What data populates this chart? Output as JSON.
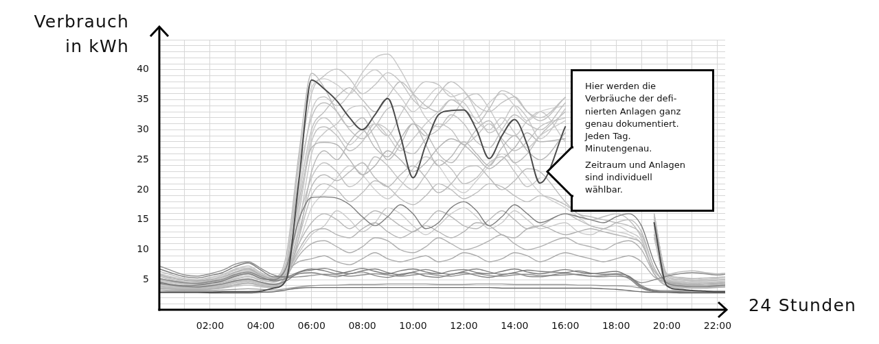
{
  "chart_data": {
    "type": "line",
    "ylabel": "Verbrauch\nin kWh",
    "xlabel": "24 Stunden",
    "annotations": [
      "Hier werden die\nVerbräuche der defi-\nnierten Anlagen ganz\ngenau dokumentiert.\nJeden Tag.\nMinutengenau.",
      "Zeitraum und Anlagen\nsind individuell\nwählbar."
    ],
    "xlim": [
      0,
      22.3
    ],
    "ylim": [
      0,
      45
    ],
    "xticks": [
      {
        "value": 1,
        "label": null
      },
      {
        "value": 2,
        "label": "02:00"
      },
      {
        "value": 3,
        "label": null
      },
      {
        "value": 4,
        "label": "04:00"
      },
      {
        "value": 5,
        "label": null
      },
      {
        "value": 6,
        "label": "06:00"
      },
      {
        "value": 7,
        "label": null
      },
      {
        "value": 8,
        "label": "08:00"
      },
      {
        "value": 9,
        "label": null
      },
      {
        "value": 10,
        "label": "10:00"
      },
      {
        "value": 11,
        "label": null
      },
      {
        "value": 12,
        "label": "12:00"
      },
      {
        "value": 13,
        "label": null
      },
      {
        "value": 14,
        "label": "14:00"
      },
      {
        "value": 15,
        "label": null
      },
      {
        "value": 16,
        "label": "16:00"
      },
      {
        "value": 17,
        "label": null
      },
      {
        "value": 18,
        "label": "18:00"
      },
      {
        "value": 19,
        "label": null
      },
      {
        "value": 20,
        "label": "20:00"
      },
      {
        "value": 21,
        "label": null
      },
      {
        "value": 22,
        "label": "22:00"
      }
    ],
    "yticks": [
      {
        "value": 1,
        "label": null
      },
      {
        "value": 2,
        "label": null
      },
      {
        "value": 3,
        "label": null
      },
      {
        "value": 4,
        "label": null
      },
      5,
      {
        "value": 6,
        "label": null
      },
      {
        "value": 7,
        "label": null
      },
      {
        "value": 8,
        "label": null
      },
      {
        "value": 9,
        "label": null
      },
      10,
      {
        "value": 11,
        "label": null
      },
      {
        "value": 12,
        "label": null
      },
      {
        "value": 13,
        "label": null
      },
      {
        "value": 14,
        "label": null
      },
      15,
      {
        "value": 16,
        "label": null
      },
      {
        "value": 17,
        "label": null
      },
      {
        "value": 18,
        "label": null
      },
      {
        "value": 19,
        "label": null
      },
      20,
      {
        "value": 21,
        "label": null
      },
      {
        "value": 22,
        "label": null
      },
      {
        "value": 23,
        "label": null
      },
      {
        "value": 24,
        "label": null
      },
      25,
      {
        "value": 26,
        "label": null
      },
      {
        "value": 27,
        "label": null
      },
      {
        "value": 28,
        "label": null
      },
      {
        "value": 29,
        "label": null
      },
      30,
      {
        "value": 31,
        "label": null
      },
      {
        "value": 32,
        "label": null
      },
      {
        "value": 33,
        "label": null
      },
      {
        "value": 34,
        "label": null
      },
      35,
      {
        "value": 36,
        "label": null
      },
      {
        "value": 37,
        "label": null
      },
      {
        "value": 38,
        "label": null
      },
      {
        "value": 39,
        "label": null
      },
      40,
      {
        "value": 41,
        "label": null
      },
      {
        "value": 42,
        "label": null
      },
      {
        "value": 43,
        "label": null
      },
      {
        "value": 44,
        "label": null
      },
      {
        "value": 45,
        "label": null
      }
    ],
    "grid": true,
    "x": [
      0,
      0.5,
      1,
      1.5,
      2,
      2.5,
      3,
      3.5,
      4,
      4.5,
      5,
      5.5,
      6,
      6.5,
      7,
      7.5,
      8,
      8.5,
      9,
      9.5,
      10,
      10.5,
      11,
      11.5,
      12,
      12.5,
      13,
      13.5,
      14,
      14.5,
      15,
      16,
      16.5,
      17,
      17.5,
      18,
      18.5,
      19,
      19.5,
      20,
      20.5,
      21,
      21.5,
      22,
      22.3
    ],
    "series": [
      {
        "color": "#cfcfcf",
        "values": [
          4.1,
          3.9,
          3.7,
          3.7,
          3.9,
          4.1,
          4.6,
          4.9,
          4.4,
          4.1,
          5.5,
          11.0,
          17.0,
          19.5,
          22.0,
          24.0,
          22.5,
          20.0,
          18.5,
          20.5,
          23.5,
          25.5,
          24.0,
          21.0,
          19.5,
          21.5,
          24.0,
          26.0,
          24.5,
          22.0,
          19.5,
          17.0,
          15.5,
          14.0,
          13.5,
          13.0,
          12.5,
          11.0,
          6.5,
          4.6,
          4.3,
          4.1,
          4.1,
          4.2,
          4.3
        ]
      },
      {
        "color": "#cdcdcd",
        "values": [
          4.7,
          4.4,
          4.1,
          4.0,
          4.2,
          4.6,
          5.2,
          5.5,
          4.9,
          4.6,
          7.0,
          25.0,
          37.0,
          38.5,
          37.5,
          36.0,
          38.5,
          40.0,
          38.0,
          35.5,
          33.0,
          35.0,
          37.0,
          36.0,
          33.5,
          32.0,
          34.5,
          36.0,
          34.0,
          31.5,
          33.0,
          34.0,
          null,
          null,
          null,
          null,
          null,
          null,
          14.0,
          5.0,
          4.7,
          4.5,
          4.5,
          4.6,
          4.7
        ]
      },
      {
        "color": "#cacaca",
        "values": [
          5.6,
          5.1,
          4.7,
          4.6,
          4.8,
          5.3,
          6.0,
          6.4,
          5.6,
          5.0,
          6.0,
          9.5,
          12.5,
          14.0,
          16.5,
          15.0,
          13.0,
          14.5,
          17.0,
          16.0,
          14.0,
          12.5,
          14.0,
          16.0,
          17.0,
          15.5,
          13.5,
          14.5,
          16.5,
          15.0,
          13.5,
          14.5,
          13.0,
          12.5,
          13.5,
          14.0,
          13.0,
          11.5,
          6.0,
          4.4,
          4.1,
          4.0,
          4.0,
          4.1,
          4.2
        ]
      },
      {
        "color": "#c1c1c1",
        "values": [
          3.7,
          3.5,
          3.4,
          3.4,
          3.6,
          3.8,
          4.2,
          4.5,
          4.1,
          3.9,
          5.5,
          16.0,
          28.0,
          30.5,
          29.0,
          26.5,
          28.0,
          31.0,
          30.0,
          27.0,
          26.0,
          28.5,
          31.0,
          30.0,
          27.5,
          29.0,
          31.0,
          28.5,
          26.5,
          28.0,
          30.5,
          32.0,
          null,
          null,
          null,
          null,
          null,
          null,
          12.0,
          4.1,
          3.8,
          3.7,
          3.7,
          3.8,
          3.9
        ]
      },
      {
        "color": "#c2c2c2",
        "values": [
          5.5,
          5.0,
          4.7,
          4.6,
          4.9,
          5.3,
          6.2,
          6.6,
          5.7,
          5.3,
          8.0,
          24.0,
          36.0,
          39.0,
          40.1,
          38.5,
          36.0,
          37.5,
          39.5,
          38.0,
          35.0,
          33.5,
          36.0,
          38.0,
          36.5,
          34.0,
          33.0,
          34.5,
          35.5,
          33.0,
          31.5,
          35.4,
          null,
          null,
          null,
          null,
          null,
          null,
          16.0,
          5.5,
          5.0,
          4.8,
          4.9,
          5.0,
          5.1
        ]
      },
      {
        "color": "#c8c8c8",
        "values": [
          4.2,
          4.0,
          3.8,
          3.8,
          4.0,
          4.3,
          4.8,
          5.1,
          4.6,
          4.3,
          6.0,
          20.0,
          33.0,
          35.5,
          34.0,
          36.0,
          39.5,
          42.0,
          42.6,
          40.0,
          36.0,
          32.0,
          30.5,
          32.0,
          35.0,
          36.0,
          33.5,
          30.0,
          29.0,
          31.5,
          33.0,
          28.0,
          null,
          null,
          null,
          null,
          null,
          null,
          13.0,
          4.2,
          3.9,
          3.8,
          3.8,
          3.9,
          4.0
        ]
      },
      {
        "color": "#bcbcbc",
        "values": [
          6.4,
          5.8,
          5.2,
          5.0,
          5.4,
          5.9,
          6.8,
          7.3,
          6.2,
          5.4,
          9.0,
          26.0,
          39.4,
          37.0,
          33.0,
          30.5,
          32.0,
          28.5,
          25.0,
          27.5,
          31.0,
          29.5,
          26.0,
          24.5,
          27.0,
          30.0,
          31.5,
          28.0,
          24.5,
          26.0,
          29.0,
          33.0,
          null,
          null,
          null,
          null,
          null,
          null,
          15.0,
          5.0,
          4.6,
          4.4,
          4.5,
          4.6,
          4.7
        ]
      },
      {
        "color": "#c6c6c6",
        "values": [
          3.8,
          3.6,
          3.5,
          3.5,
          3.7,
          3.9,
          4.3,
          4.6,
          4.2,
          4.0,
          5.5,
          14.0,
          26.0,
          29.5,
          31.0,
          33.5,
          34.0,
          31.0,
          29.0,
          32.5,
          36.0,
          38.0,
          37.5,
          35.5,
          36.1,
          33.0,
          29.5,
          31.0,
          34.0,
          32.0,
          28.5,
          33.5,
          null,
          null,
          null,
          null,
          null,
          null,
          12.0,
          4.3,
          3.9,
          3.7,
          3.7,
          3.8,
          3.9
        ]
      },
      {
        "color": "#b4b4b4",
        "values": [
          5.0,
          4.6,
          4.3,
          4.2,
          4.5,
          4.9,
          5.6,
          6.0,
          5.3,
          4.9,
          7.0,
          18.0,
          27.0,
          27.9,
          27.5,
          25.0,
          22.5,
          24.0,
          26.5,
          25.0,
          23.0,
          24.5,
          27.0,
          28.5,
          27.5,
          25.5,
          23.5,
          25.0,
          27.0,
          29.5,
          28.0,
          28.5,
          null,
          null,
          null,
          null,
          null,
          null,
          15.5,
          6.0,
          5.4,
          5.2,
          5.3,
          5.4,
          5.5
        ]
      },
      {
        "color": "#c3c3c3",
        "values": [
          4.0,
          3.8,
          3.7,
          3.7,
          3.9,
          4.2,
          4.7,
          5.0,
          4.5,
          4.2,
          6.0,
          15.0,
          22.0,
          24.5,
          23.0,
          20.5,
          22.0,
          25.5,
          24.0,
          21.5,
          20.0,
          22.5,
          25.0,
          23.5,
          21.0,
          22.0,
          24.5,
          25.5,
          23.0,
          20.5,
          22.0,
          null,
          null,
          null,
          null,
          null,
          null,
          null,
          14.0,
          5.0,
          4.5,
          4.3,
          4.3,
          4.4,
          4.5
        ]
      },
      {
        "color": "#bdbdbd",
        "values": [
          3.5,
          3.4,
          3.3,
          3.3,
          3.4,
          3.6,
          3.9,
          4.1,
          3.8,
          3.7,
          5.0,
          12.0,
          19.0,
          21.0,
          20.0,
          18.0,
          19.5,
          21.5,
          20.5,
          18.5,
          17.5,
          19.0,
          21.0,
          20.0,
          18.5,
          19.5,
          21.0,
          20.5,
          19.0,
          18.0,
          19.0,
          17.5,
          16.0,
          15.0,
          15.5,
          16.0,
          15.0,
          12.0,
          6.0,
          4.0,
          3.8,
          3.7,
          3.7,
          3.8,
          3.8
        ]
      },
      {
        "color": "#c0c0c0",
        "values": [
          6.0,
          5.5,
          5.0,
          4.8,
          5.2,
          5.7,
          6.6,
          7.0,
          6.0,
          5.2,
          7.5,
          22.0,
          32.0,
          34.5,
          33.0,
          30.0,
          28.5,
          30.5,
          33.5,
          34.0,
          31.5,
          29.0,
          30.0,
          32.5,
          31.0,
          28.0,
          27.0,
          30.0,
          32.5,
          31.0,
          30.0,
          34.5,
          null,
          null,
          null,
          null,
          null,
          null,
          15.5,
          5.8,
          5.2,
          5.0,
          5.1,
          5.2,
          5.3
        ]
      },
      {
        "color": "#b8b8b8",
        "values": [
          4.4,
          4.1,
          3.9,
          3.9,
          4.1,
          4.5,
          5.1,
          5.5,
          4.9,
          4.6,
          6.0,
          11.0,
          14.5,
          16.0,
          15.0,
          13.5,
          15.0,
          16.5,
          15.5,
          14.0,
          13.0,
          14.5,
          16.5,
          15.5,
          14.0,
          13.5,
          15.0,
          16.5,
          15.0,
          13.5,
          14.0,
          16.0,
          15.0,
          14.0,
          13.5,
          14.5,
          15.0,
          13.0,
          7.0,
          4.5,
          4.2,
          4.1,
          4.1,
          4.2,
          4.3
        ]
      },
      {
        "color": "#b0b0b0",
        "values": [
          3.6,
          3.5,
          3.4,
          3.4,
          3.5,
          3.7,
          4.1,
          4.4,
          4.0,
          3.8,
          5.5,
          9.0,
          11.0,
          11.5,
          10.5,
          9.5,
          10.5,
          12.0,
          11.5,
          10.0,
          9.5,
          10.5,
          12.0,
          11.0,
          10.0,
          10.5,
          11.5,
          12.5,
          11.0,
          10.0,
          10.5,
          12.0,
          11.0,
          10.5,
          10.0,
          11.0,
          11.5,
          10.0,
          6.0,
          4.0,
          3.7,
          3.6,
          3.6,
          3.7,
          3.8
        ]
      },
      {
        "color": "#aaaaaa",
        "values": [
          5.8,
          5.3,
          4.9,
          4.8,
          5.0,
          5.5,
          6.3,
          6.8,
          5.8,
          5.1,
          6.5,
          8.0,
          8.5,
          9.0,
          8.0,
          7.5,
          8.5,
          9.5,
          8.5,
          8.0,
          8.5,
          9.0,
          8.0,
          8.5,
          9.5,
          9.0,
          8.0,
          8.5,
          9.5,
          9.0,
          8.0,
          9.5,
          9.0,
          8.5,
          8.0,
          8.5,
          9.0,
          8.0,
          5.5,
          4.6,
          4.3,
          4.2,
          4.3,
          4.4,
          4.5
        ]
      },
      {
        "color": "#c9c9c9",
        "values": [
          4.8,
          4.5,
          4.2,
          4.1,
          4.3,
          4.7,
          5.4,
          5.7,
          5.0,
          4.7,
          6.5,
          17.0,
          29.0,
          32.0,
          30.0,
          27.5,
          29.5,
          31.0,
          29.0,
          26.5,
          28.5,
          31.0,
          33.0,
          35.0,
          34.5,
          31.5,
          30.0,
          32.0,
          29.5,
          27.0,
          29.0,
          31.5,
          null,
          null,
          null,
          null,
          null,
          null,
          13.5,
          5.2,
          4.8,
          4.6,
          4.6,
          4.7,
          4.8
        ]
      },
      {
        "color": "#bababa",
        "values": [
          3.9,
          3.7,
          3.6,
          3.6,
          3.8,
          4.0,
          4.5,
          4.8,
          4.3,
          4.1,
          5.5,
          13.0,
          20.5,
          22.5,
          21.5,
          23.0,
          24.5,
          22.0,
          20.5,
          22.5,
          24.0,
          22.0,
          19.5,
          21.0,
          23.5,
          24.0,
          22.0,
          20.0,
          21.5,
          23.5,
          23.0,
          18.0,
          16.0,
          15.5,
          15.0,
          14.5,
          14.0,
          12.5,
          7.0,
          4.3,
          4.0,
          3.9,
          3.9,
          4.0,
          4.0
        ]
      },
      {
        "color": "#b2b2b2",
        "values": [
          5.2,
          4.8,
          4.5,
          4.4,
          4.6,
          5.0,
          5.8,
          6.2,
          5.4,
          4.9,
          6.0,
          10.0,
          13.0,
          13.5,
          12.5,
          12.0,
          13.5,
          14.5,
          13.0,
          12.0,
          13.0,
          14.0,
          13.0,
          12.0,
          13.0,
          14.5,
          14.0,
          12.5,
          12.0,
          13.5,
          14.0,
          12.5,
          13.0,
          13.5,
          13.0,
          12.5,
          12.0,
          11.0,
          6.5,
          4.8,
          4.4,
          4.2,
          4.3,
          4.4,
          4.5
        ]
      },
      {
        "color": "#b7b7b7",
        "values": [
          4.3,
          4.0,
          3.8,
          3.8,
          4.0,
          4.3,
          4.9,
          5.2,
          4.6,
          4.3,
          5.5,
          12.0,
          23.0,
          26.5,
          25.0,
          28.0,
          30.0,
          27.0,
          25.5,
          28.5,
          31.0,
          27.5,
          24.0,
          25.5,
          28.0,
          26.0,
          24.0,
          27.0,
          29.0,
          26.5,
          25.0,
          29.5,
          null,
          null,
          null,
          null,
          null,
          null,
          12.5,
          5.9,
          6.3,
          6.5,
          6.2,
          6.0,
          6.1
        ]
      },
      {
        "color": "#bebebe",
        "values": [
          5.0,
          4.7,
          4.4,
          4.3,
          4.6,
          5.0,
          5.7,
          6.1,
          5.4,
          5.0,
          7.0,
          19.0,
          30.0,
          33.0,
          35.5,
          37.0,
          35.0,
          33.0,
          35.5,
          38.0,
          36.0,
          34.0,
          33.0,
          35.0,
          33.5,
          31.0,
          33.5,
          36.5,
          35.5,
          33.0,
          32.0,
          35.4,
          null,
          null,
          null,
          null,
          null,
          null,
          16.0,
          5.5,
          5.0,
          4.8,
          4.8,
          4.9,
          5.0
        ]
      },
      {
        "color": "#9a9a9a",
        "values": [
          3.3,
          3.2,
          3.2,
          3.2,
          3.2,
          3.3,
          3.4,
          3.5,
          3.4,
          3.3,
          3.5,
          3.8,
          4.0,
          4.1,
          4.1,
          4.2,
          4.2,
          4.2,
          4.3,
          4.3,
          4.3,
          4.3,
          4.2,
          4.2,
          4.2,
          4.3,
          4.3,
          4.3,
          4.2,
          4.2,
          4.2,
          4.2,
          4.1,
          4.1,
          4.0,
          4.0,
          3.9,
          3.6,
          3.3,
          3.2,
          3.2,
          3.1,
          3.1,
          3.1,
          3.1
        ]
      },
      {
        "color": "#8e8e8e",
        "values": [
          7.3,
          6.5,
          5.8,
          5.6,
          6.0,
          6.6,
          7.6,
          8.0,
          6.9,
          5.8,
          5.4,
          5.5,
          5.7,
          5.9,
          5.8,
          5.6,
          5.8,
          6.0,
          5.8,
          5.6,
          5.8,
          6.0,
          5.7,
          5.6,
          5.9,
          6.0,
          5.7,
          5.6,
          5.8,
          5.9,
          5.7,
          5.8,
          5.9,
          5.6,
          5.5,
          5.6,
          5.4,
          4.5,
          5.0,
          5.6,
          6.0,
          6.2,
          6.0,
          5.8,
          5.9
        ]
      },
      {
        "color": "#858585",
        "values": [
          5.2,
          4.8,
          4.5,
          4.4,
          4.7,
          5.1,
          5.9,
          6.3,
          5.5,
          4.8,
          5.2,
          6.0,
          6.2,
          5.8,
          5.5,
          6.0,
          6.3,
          5.7,
          5.4,
          5.9,
          6.2,
          5.6,
          5.4,
          5.9,
          6.2,
          5.7,
          5.4,
          5.8,
          6.1,
          5.6,
          5.5,
          6.1,
          5.8,
          5.6,
          5.7,
          5.9,
          5.2,
          3.6,
          3.0,
          2.9,
          2.9,
          2.9,
          2.9,
          2.9,
          2.9
        ]
      },
      {
        "color": "#7f7f7f",
        "values": [
          4.4,
          4.1,
          3.9,
          3.8,
          4.0,
          4.3,
          4.8,
          5.1,
          4.6,
          4.2,
          4.8,
          6.2,
          6.6,
          6.9,
          6.4,
          6.0,
          6.5,
          6.8,
          6.2,
          5.8,
          6.3,
          6.7,
          6.2,
          5.9,
          6.4,
          6.8,
          6.3,
          5.9,
          6.2,
          6.6,
          6.4,
          6.2,
          6.5,
          6.1,
          5.9,
          6.0,
          5.6,
          4.0,
          3.2,
          3.0,
          2.9,
          2.9,
          2.9,
          2.9,
          2.9
        ]
      },
      {
        "color": "#7a7a7a",
        "values": [
          6.8,
          6.1,
          5.5,
          5.3,
          5.7,
          6.2,
          7.2,
          7.8,
          6.6,
          5.5,
          5.5,
          6.3,
          6.8,
          6.5,
          6.0,
          6.4,
          6.9,
          6.4,
          6.0,
          6.5,
          6.8,
          6.3,
          6.0,
          6.5,
          6.7,
          6.2,
          6.0,
          6.4,
          6.8,
          6.3,
          6.0,
          6.7,
          6.3,
          6.0,
          6.2,
          6.4,
          5.5,
          3.8,
          3.1,
          3.0,
          3.0,
          2.9,
          2.9,
          2.9,
          2.9
        ]
      },
      {
        "color": "#6a6a6a",
        "values": [
          2.9,
          2.9,
          2.9,
          2.9,
          2.8,
          2.8,
          2.8,
          2.8,
          2.9,
          3.0,
          3.3,
          3.6,
          3.7,
          3.7,
          3.7,
          3.7,
          3.7,
          3.7,
          3.7,
          3.7,
          3.7,
          3.7,
          3.7,
          3.7,
          3.7,
          3.7,
          3.7,
          3.6,
          3.6,
          3.6,
          3.6,
          3.6,
          3.6,
          3.6,
          3.5,
          3.4,
          3.2,
          3.0,
          2.9,
          2.9,
          2.8,
          2.8,
          2.8,
          2.8,
          2.8
        ]
      },
      {
        "color": "#7c7c7c",
        "values": [
          4.6,
          4.2,
          4.0,
          4.1,
          4.4,
          4.8,
          5.6,
          6.0,
          5.2,
          5.0,
          7.0,
          15.0,
          18.7,
          18.8,
          18.6,
          17.5,
          15.5,
          14.0,
          15.5,
          17.5,
          16.0,
          13.5,
          14.5,
          17.0,
          18.0,
          16.5,
          14.0,
          15.5,
          17.5,
          16.0,
          14.5,
          16.0,
          15.5,
          15.0,
          14.5,
          15.5,
          16.0,
          14.0,
          8.0,
          4.5,
          4.0,
          3.9,
          3.9,
          4.0,
          4.1
        ]
      },
      {
        "color": "#4a4a4a",
        "values": [
          2.9,
          2.9,
          2.9,
          2.9,
          2.9,
          3.0,
          3.0,
          3.0,
          3.1,
          3.6,
          5.0,
          21.5,
          38.3,
          36.8,
          34.8,
          32.0,
          30.0,
          32.5,
          35.2,
          29.0,
          22.0,
          27.5,
          32.5,
          33.2,
          33.3,
          30.0,
          25.2,
          29.0,
          31.7,
          27.5,
          21.1,
          30.5,
          null,
          null,
          null,
          null,
          null,
          null,
          14.5,
          4.0,
          3.4,
          3.2,
          3.1,
          3.0,
          3.0
        ]
      }
    ]
  }
}
